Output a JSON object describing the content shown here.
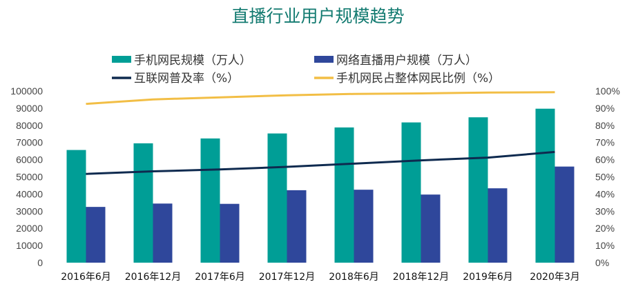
{
  "chart_data": {
    "type": "bar",
    "title": "直播行业用户规模趋势",
    "categories": [
      "2016年6月",
      "2016年12月",
      "2017年6月",
      "2017年12月",
      "2018年6月",
      "2018年12月",
      "2019年6月",
      "2020年3月"
    ],
    "series": [
      {
        "name": "手机网民规模（万人）",
        "type": "bar",
        "axis": "left",
        "color": "#009e96",
        "values": [
          65637,
          69531,
          72361,
          75265,
          78774,
          81698,
          84681,
          89690
        ]
      },
      {
        "name": "网络直播用户规模（万人）",
        "type": "bar",
        "axis": "left",
        "color": "#2f479b",
        "values": [
          32476,
          34431,
          34259,
          42209,
          42503,
          39676,
          43322,
          55982
        ]
      },
      {
        "name": "互联网普及率（%）",
        "type": "line",
        "axis": "right",
        "color": "#0e2a4f",
        "values": [
          51.7,
          53.2,
          54.3,
          55.8,
          57.7,
          59.6,
          61.2,
          64.5
        ]
      },
      {
        "name": "手机网民占整体网民比例（%）",
        "type": "line",
        "axis": "right",
        "color": "#f2be45",
        "values": [
          92.5,
          95.1,
          96.3,
          97.5,
          98.3,
          98.6,
          99.1,
          99.3
        ]
      }
    ],
    "ylim": [
      0,
      100000
    ],
    "yticks": [
      "0",
      "10000",
      "20000",
      "30000",
      "40000",
      "50000",
      "60000",
      "70000",
      "80000",
      "90000",
      "100000"
    ],
    "y2lim": [
      0,
      100
    ],
    "y2ticks": [
      "0%",
      "10%",
      "20%",
      "30%",
      "40%",
      "50%",
      "60%",
      "70%",
      "80%",
      "90%",
      "100%"
    ],
    "legend": "top",
    "grid": false
  }
}
